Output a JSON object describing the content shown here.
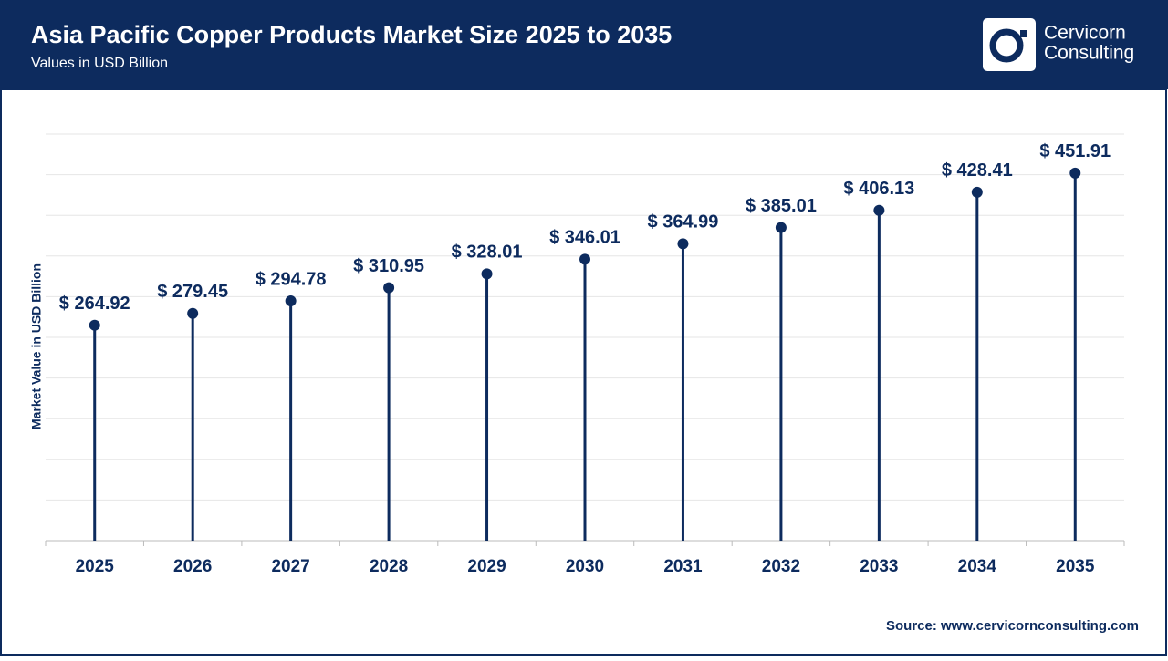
{
  "chart_data": {
    "type": "lollipop",
    "title": "Asia Pacific Copper Products Market Size 2025 to 2035",
    "subtitle": "Values in USD Billion",
    "y_label": "Market Value in USD Billion",
    "source": "Source: www.cervicornconsulting.com",
    "logo": [
      "Cervicorn",
      "Consulting"
    ],
    "categories": [
      "2025",
      "2026",
      "2027",
      "2028",
      "2029",
      "2030",
      "2031",
      "2032",
      "2033",
      "2034",
      "2035"
    ],
    "values": [
      264.92,
      279.45,
      294.78,
      310.95,
      328.01,
      346.01,
      364.99,
      385.01,
      406.13,
      428.41,
      451.91
    ],
    "value_labels": [
      "$ 264.92",
      "$ 279.45",
      "$ 294.78",
      "$ 310.95",
      "$ 328.01",
      "$ 346.01",
      "$ 364.99",
      "$ 385.01",
      "$ 406.13",
      "$ 428.41",
      "$ 451.91"
    ],
    "color": "#0d2b5e",
    "ylim": [
      0,
      500
    ],
    "yticks": [
      0,
      50,
      100,
      150,
      200,
      250,
      300,
      350,
      400,
      450,
      500
    ],
    "grid": true
  }
}
